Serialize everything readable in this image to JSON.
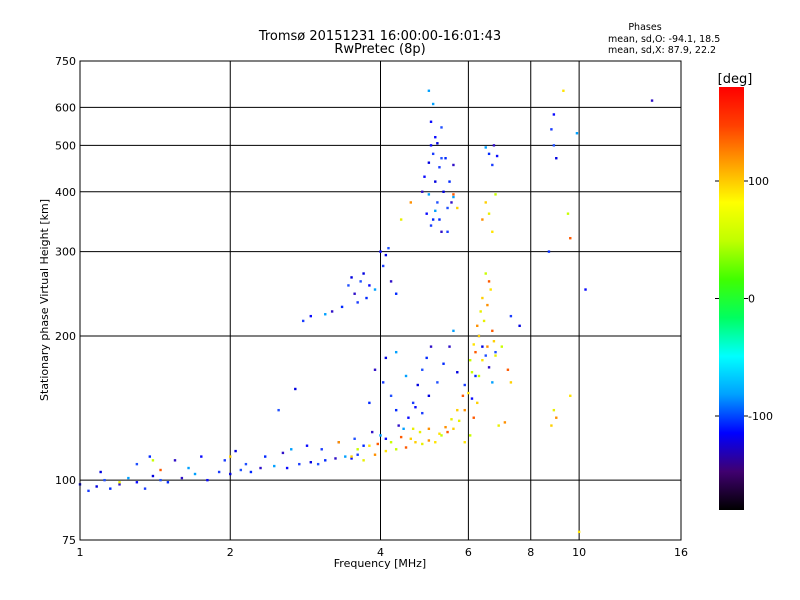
{
  "chart_data": {
    "type": "scatter",
    "title": "Tromsø 20151231 16:00:00-16:01:43",
    "subtitle": "RwPretec (8p)",
    "xlabel": "Frequency [MHz]",
    "ylabel": "Stationary phase Virtual Height [km]",
    "x_scale": "log",
    "y_scale": "log",
    "xlim": [
      1,
      16
    ],
    "ylim": [
      75,
      750
    ],
    "xticks": [
      1,
      2,
      4,
      6,
      8,
      10,
      16
    ],
    "xtick_labels": [
      "1",
      "2",
      "4",
      "6",
      "8",
      "10",
      "16"
    ],
    "yticks": [
      75,
      100,
      200,
      300,
      400,
      500,
      600,
      750
    ],
    "ytick_labels": [
      "75",
      "100",
      "200",
      "300",
      "400",
      "500",
      "600",
      "750"
    ],
    "grid": true,
    "phase_stats": {
      "heading": "Phases",
      "line_o": "mean, sd,O: -94.1, 18.5",
      "line_x": "mean, sd,X:  87.9, 22.2"
    },
    "colorbar": {
      "label": "[deg]",
      "ticks": [
        100,
        0,
        -100
      ],
      "tick_labels": [
        "100",
        "0",
        "-100"
      ],
      "range": [
        -180,
        180
      ],
      "colors": [
        "#000000",
        "#400070",
        "#0000ff",
        "#00a0ff",
        "#00ffff",
        "#00ff60",
        "#40ff00",
        "#c0ff00",
        "#ffff00",
        "#ffa000",
        "#ff4000",
        "#ff0000"
      ]
    },
    "series": [
      {
        "points": [
          [
            1.0,
            98
          ],
          [
            1.04,
            95
          ],
          [
            1.08,
            97
          ],
          [
            1.12,
            100
          ],
          [
            1.15,
            96
          ],
          [
            1.2,
            98
          ],
          [
            1.25,
            101
          ],
          [
            1.3,
            99
          ],
          [
            1.35,
            96
          ],
          [
            1.4,
            102
          ],
          [
            1.45,
            100
          ],
          [
            1.5,
            99
          ],
          [
            1.6,
            101
          ],
          [
            1.7,
            103
          ],
          [
            1.8,
            100
          ],
          [
            1.9,
            104
          ],
          [
            2.0,
            103
          ],
          [
            2.1,
            105
          ],
          [
            2.2,
            104
          ],
          [
            2.3,
            106
          ],
          [
            2.45,
            107
          ],
          [
            2.6,
            106
          ],
          [
            2.75,
            108
          ],
          [
            2.9,
            109
          ],
          [
            3.0,
            108
          ],
          [
            3.1,
            110
          ],
          [
            3.25,
            111
          ],
          [
            3.4,
            112
          ],
          [
            3.5,
            111
          ],
          [
            3.6,
            113
          ],
          [
            1.1,
            104
          ],
          [
            1.3,
            108
          ],
          [
            1.38,
            112
          ],
          [
            1.55,
            110
          ],
          [
            1.65,
            106
          ],
          [
            1.75,
            112
          ],
          [
            1.95,
            110
          ],
          [
            2.05,
            115
          ],
          [
            2.15,
            108
          ],
          [
            2.35,
            112
          ],
          [
            2.55,
            114
          ],
          [
            2.65,
            116
          ],
          [
            2.85,
            118
          ],
          [
            3.05,
            116
          ],
          [
            3.3,
            120
          ],
          [
            3.55,
            122
          ],
          [
            3.7,
            118
          ],
          [
            3.85,
            126
          ],
          [
            4.0,
            124
          ],
          [
            4.1,
            122
          ],
          [
            4.05,
            160
          ],
          [
            4.1,
            180
          ],
          [
            4.2,
            150
          ],
          [
            4.3,
            140
          ],
          [
            4.35,
            130
          ],
          [
            4.45,
            128
          ],
          [
            4.55,
            135
          ],
          [
            4.65,
            145
          ],
          [
            4.75,
            158
          ],
          [
            4.85,
            170
          ],
          [
            4.95,
            180
          ],
          [
            5.05,
            190
          ],
          [
            4.5,
            165
          ],
          [
            4.7,
            142
          ],
          [
            4.85,
            138
          ],
          [
            5.0,
            150
          ],
          [
            5.2,
            160
          ],
          [
            5.35,
            175
          ],
          [
            5.5,
            190
          ],
          [
            5.6,
            205
          ],
          [
            4.0,
            300
          ],
          [
            4.05,
            280
          ],
          [
            4.1,
            295
          ],
          [
            4.15,
            305
          ],
          [
            4.3,
            245
          ],
          [
            4.2,
            260
          ],
          [
            3.9,
            250
          ],
          [
            3.8,
            255
          ],
          [
            3.6,
            235
          ],
          [
            3.5,
            265
          ],
          [
            3.45,
            255
          ],
          [
            3.35,
            230
          ],
          [
            3.2,
            225
          ],
          [
            3.1,
            222
          ],
          [
            2.9,
            220
          ],
          [
            2.8,
            215
          ],
          [
            3.7,
            270
          ],
          [
            3.65,
            260
          ],
          [
            3.75,
            240
          ],
          [
            3.55,
            245
          ],
          [
            5.0,
            650
          ],
          [
            5.05,
            560
          ],
          [
            5.1,
            480
          ],
          [
            5.15,
            420
          ],
          [
            5.2,
            380
          ],
          [
            5.25,
            350
          ],
          [
            5.3,
            330
          ],
          [
            5.1,
            610
          ],
          [
            5.15,
            520
          ],
          [
            5.25,
            450
          ],
          [
            5.35,
            400
          ],
          [
            5.45,
            370
          ],
          [
            5.5,
            420
          ],
          [
            5.6,
            455
          ],
          [
            5.0,
            395
          ],
          [
            4.95,
            360
          ],
          [
            5.05,
            340
          ],
          [
            5.2,
            505
          ],
          [
            5.3,
            545
          ],
          [
            5.4,
            470
          ],
          [
            5.55,
            380
          ],
          [
            5.15,
            365
          ],
          [
            4.9,
            430
          ],
          [
            5.45,
            330
          ],
          [
            5.0,
            460
          ],
          [
            5.3,
            470
          ],
          [
            5.1,
            350
          ],
          [
            4.85,
            400
          ],
          [
            5.6,
            390
          ],
          [
            5.05,
            500
          ],
          [
            6.3,
            200
          ],
          [
            6.4,
            190
          ],
          [
            6.5,
            182
          ],
          [
            6.2,
            165
          ],
          [
            6.6,
            172
          ],
          [
            6.7,
            160
          ],
          [
            6.1,
            148
          ],
          [
            5.9,
            158
          ],
          [
            5.7,
            168
          ],
          [
            6.8,
            185
          ],
          [
            6.6,
            480
          ],
          [
            6.75,
            500
          ],
          [
            6.5,
            495
          ],
          [
            6.85,
            475
          ],
          [
            6.7,
            455
          ],
          [
            2.7,
            155
          ],
          [
            2.5,
            140
          ],
          [
            3.8,
            145
          ],
          [
            3.9,
            170
          ],
          [
            4.3,
            185
          ],
          [
            8.9,
            580
          ],
          [
            8.8,
            540
          ],
          [
            9.0,
            470
          ],
          [
            8.9,
            500
          ],
          [
            8.7,
            300
          ],
          [
            14.0,
            620
          ],
          [
            9.9,
            530
          ],
          [
            10.3,
            250
          ],
          [
            7.3,
            220
          ],
          [
            7.6,
            210
          ]
        ]
      },
      {
        "points": [
          [
            3.5,
            112
          ],
          [
            3.7,
            110
          ],
          [
            3.9,
            113
          ],
          [
            4.1,
            115
          ],
          [
            4.3,
            116
          ],
          [
            4.5,
            117
          ],
          [
            4.7,
            120
          ],
          [
            4.85,
            119
          ],
          [
            5.0,
            121
          ],
          [
            5.15,
            120
          ],
          [
            5.3,
            124
          ],
          [
            5.45,
            126
          ],
          [
            5.6,
            128
          ],
          [
            5.75,
            133
          ],
          [
            5.9,
            140
          ],
          [
            6.0,
            152
          ],
          [
            6.1,
            168
          ],
          [
            6.2,
            185
          ],
          [
            6.3,
            200
          ],
          [
            6.45,
            215
          ],
          [
            6.55,
            232
          ],
          [
            6.65,
            250
          ],
          [
            6.5,
            270
          ],
          [
            6.6,
            260
          ],
          [
            6.4,
            240
          ],
          [
            6.35,
            225
          ],
          [
            6.25,
            210
          ],
          [
            6.15,
            192
          ],
          [
            6.05,
            178
          ],
          [
            6.7,
            205
          ],
          [
            6.75,
            195
          ],
          [
            6.8,
            182
          ],
          [
            6.55,
            190
          ],
          [
            6.4,
            178
          ],
          [
            6.3,
            165
          ],
          [
            5.85,
            150
          ],
          [
            5.7,
            140
          ],
          [
            5.55,
            134
          ],
          [
            5.4,
            129
          ],
          [
            5.25,
            125
          ],
          [
            4.2,
            120
          ],
          [
            4.4,
            123
          ],
          [
            4.6,
            122
          ],
          [
            4.8,
            126
          ],
          [
            5.0,
            128
          ],
          [
            3.8,
            118
          ],
          [
            3.6,
            116
          ],
          [
            3.95,
            119
          ],
          [
            6.5,
            380
          ],
          [
            6.6,
            360
          ],
          [
            6.4,
            350
          ],
          [
            6.7,
            330
          ],
          [
            6.8,
            395
          ],
          [
            5.6,
            395
          ],
          [
            5.7,
            370
          ],
          [
            4.4,
            350
          ],
          [
            4.6,
            380
          ],
          [
            9.3,
            650
          ],
          [
            9.5,
            360
          ],
          [
            9.6,
            320
          ],
          [
            8.8,
            130
          ],
          [
            8.9,
            140
          ],
          [
            9.0,
            135
          ],
          [
            9.6,
            150
          ],
          [
            7.0,
            190
          ],
          [
            7.2,
            170
          ],
          [
            7.3,
            160
          ],
          [
            6.9,
            130
          ],
          [
            7.1,
            132
          ],
          [
            10.0,
            78
          ],
          [
            1.4,
            110
          ],
          [
            1.45,
            105
          ],
          [
            2.0,
            112
          ],
          [
            1.2,
            99
          ],
          [
            3.3,
            120
          ],
          [
            5.9,
            120
          ],
          [
            6.05,
            124
          ],
          [
            6.15,
            135
          ],
          [
            6.25,
            145
          ],
          [
            4.65,
            128
          ]
        ]
      }
    ]
  }
}
